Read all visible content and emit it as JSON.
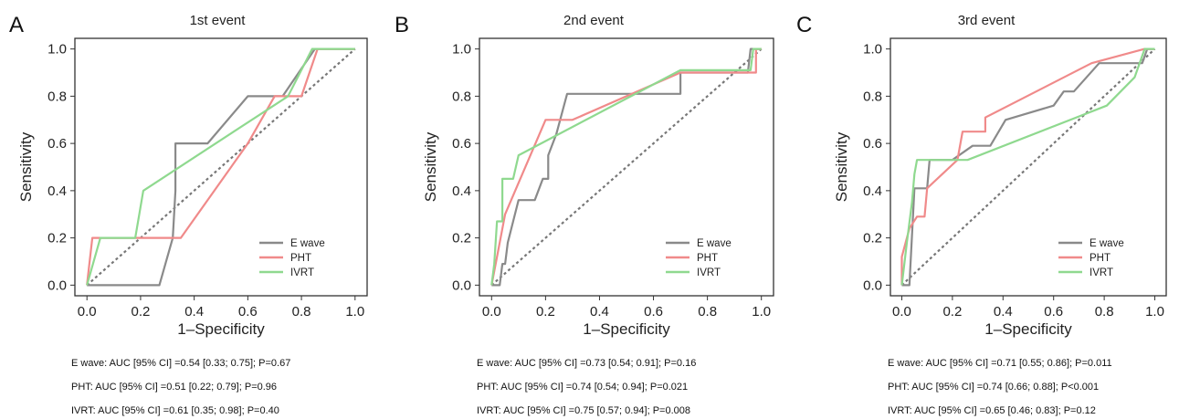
{
  "chart_data": [
    {
      "type": "line",
      "panel_label": "A",
      "title": "1st event",
      "xlabel": "1–Specificity",
      "ylabel": "Sensitivity",
      "xlim": [
        0,
        1
      ],
      "ylim": [
        0,
        1
      ],
      "ticks": [
        "0.0",
        "0.2",
        "0.4",
        "0.6",
        "0.8",
        "1.0"
      ],
      "legend_position": "bottom-right",
      "series": [
        {
          "name": "E wave",
          "color": "#8a8a8a",
          "points": [
            [
              0,
              0
            ],
            [
              0.27,
              0
            ],
            [
              0.32,
              0.2
            ],
            [
              0.33,
              0.4
            ],
            [
              0.33,
              0.6
            ],
            [
              0.45,
              0.6
            ],
            [
              0.6,
              0.8
            ],
            [
              0.73,
              0.8
            ],
            [
              0.85,
              1.0
            ],
            [
              1.0,
              1.0
            ]
          ]
        },
        {
          "name": "PHT",
          "color": "#f08a8a",
          "points": [
            [
              0,
              0
            ],
            [
              0.02,
              0.2
            ],
            [
              0.35,
              0.2
            ],
            [
              0.6,
              0.6
            ],
            [
              0.7,
              0.8
            ],
            [
              0.8,
              0.8
            ],
            [
              0.86,
              1.0
            ],
            [
              1.0,
              1.0
            ]
          ]
        },
        {
          "name": "IVRT",
          "color": "#8fd98f",
          "points": [
            [
              0,
              0
            ],
            [
              0.05,
              0.2
            ],
            [
              0.18,
              0.2
            ],
            [
              0.21,
              0.4
            ],
            [
              0.75,
              0.8
            ],
            [
              0.84,
              1.0
            ],
            [
              1.0,
              1.0
            ]
          ]
        }
      ],
      "reference_line": [
        [
          0,
          0
        ],
        [
          1,
          1
        ]
      ],
      "stats": [
        "E wave: AUC [95% CI] =0.54 [0.33; 0.75]; P=0.67",
        "PHT: AUC [95% CI] =0.51 [0.22; 0.79]; P=0.96",
        "IVRT: AUC [95% CI] =0.61 [0.35; 0.98]; P=0.40"
      ]
    },
    {
      "type": "line",
      "panel_label": "B",
      "title": "2nd event",
      "xlabel": "1–Specificity",
      "ylabel": "Sensitivity",
      "xlim": [
        0,
        1
      ],
      "ylim": [
        0,
        1
      ],
      "ticks": [
        "0.0",
        "0.2",
        "0.4",
        "0.6",
        "0.8",
        "1.0"
      ],
      "legend_position": "bottom-right",
      "series": [
        {
          "name": "E wave",
          "color": "#8a8a8a",
          "points": [
            [
              0,
              0
            ],
            [
              0.03,
              0
            ],
            [
              0.04,
              0.09
            ],
            [
              0.05,
              0.09
            ],
            [
              0.06,
              0.18
            ],
            [
              0.08,
              0.27
            ],
            [
              0.1,
              0.36
            ],
            [
              0.16,
              0.36
            ],
            [
              0.19,
              0.45
            ],
            [
              0.21,
              0.45
            ],
            [
              0.21,
              0.55
            ],
            [
              0.24,
              0.64
            ],
            [
              0.28,
              0.81
            ],
            [
              0.7,
              0.81
            ],
            [
              0.7,
              0.9
            ],
            [
              0.95,
              0.9
            ],
            [
              0.96,
              1.0
            ],
            [
              1.0,
              1.0
            ]
          ]
        },
        {
          "name": "PHT",
          "color": "#f08a8a",
          "points": [
            [
              0,
              0
            ],
            [
              0.05,
              0.3
            ],
            [
              0.2,
              0.7
            ],
            [
              0.3,
              0.7
            ],
            [
              0.7,
              0.9
            ],
            [
              0.97,
              0.9
            ],
            [
              0.98,
              0.9
            ],
            [
              0.98,
              1.0
            ],
            [
              1.0,
              1.0
            ]
          ]
        },
        {
          "name": "IVRT",
          "color": "#8fd98f",
          "points": [
            [
              0,
              0
            ],
            [
              0.01,
              0.09
            ],
            [
              0.02,
              0.27
            ],
            [
              0.04,
              0.27
            ],
            [
              0.04,
              0.45
            ],
            [
              0.08,
              0.45
            ],
            [
              0.1,
              0.55
            ],
            [
              0.7,
              0.91
            ],
            [
              0.96,
              0.91
            ],
            [
              0.97,
              1.0
            ],
            [
              1.0,
              1.0
            ]
          ]
        }
      ],
      "reference_line": [
        [
          0,
          0
        ],
        [
          1,
          1
        ]
      ],
      "stats": [
        "E wave: AUC [95% CI] =0.73 [0.54; 0.91]; P=0.16",
        "PHT: AUC [95% CI] =0.74 [0.54; 0.94]; P=0.021",
        "IVRT: AUC [95% CI] =0.75 [0.57; 0.94]; P=0.008"
      ]
    },
    {
      "type": "line",
      "panel_label": "C",
      "title": "3rd event",
      "xlabel": "1–Specificity",
      "ylabel": "Sensitivity",
      "xlim": [
        0,
        1
      ],
      "ylim": [
        0,
        1
      ],
      "ticks": [
        "0.0",
        "0.2",
        "0.4",
        "0.6",
        "0.8",
        "1.0"
      ],
      "legend_position": "bottom-right",
      "series": [
        {
          "name": "E wave",
          "color": "#8a8a8a",
          "points": [
            [
              0,
              0
            ],
            [
              0.03,
              0
            ],
            [
              0.05,
              0.41
            ],
            [
              0.1,
              0.41
            ],
            [
              0.11,
              0.53
            ],
            [
              0.2,
              0.53
            ],
            [
              0.28,
              0.59
            ],
            [
              0.35,
              0.59
            ],
            [
              0.41,
              0.7
            ],
            [
              0.6,
              0.76
            ],
            [
              0.64,
              0.82
            ],
            [
              0.68,
              0.82
            ],
            [
              0.78,
              0.94
            ],
            [
              0.95,
              0.94
            ],
            [
              0.97,
              1.0
            ],
            [
              1.0,
              1.0
            ]
          ]
        },
        {
          "name": "PHT",
          "color": "#f08a8a",
          "points": [
            [
              0,
              0
            ],
            [
              0.0,
              0.12
            ],
            [
              0.03,
              0.24
            ],
            [
              0.06,
              0.29
            ],
            [
              0.09,
              0.29
            ],
            [
              0.1,
              0.41
            ],
            [
              0.22,
              0.53
            ],
            [
              0.24,
              0.65
            ],
            [
              0.33,
              0.65
            ],
            [
              0.33,
              0.71
            ],
            [
              0.75,
              0.94
            ],
            [
              0.96,
              1.0
            ],
            [
              1.0,
              1.0
            ]
          ]
        },
        {
          "name": "IVRT",
          "color": "#8fd98f",
          "points": [
            [
              0,
              0
            ],
            [
              0.02,
              0.18
            ],
            [
              0.04,
              0.35
            ],
            [
              0.05,
              0.47
            ],
            [
              0.06,
              0.53
            ],
            [
              0.1,
              0.53
            ],
            [
              0.26,
              0.53
            ],
            [
              0.81,
              0.76
            ],
            [
              0.92,
              0.88
            ],
            [
              0.96,
              1.0
            ],
            [
              1.0,
              1.0
            ]
          ]
        }
      ],
      "reference_line": [
        [
          0,
          0
        ],
        [
          1,
          1
        ]
      ],
      "stats": [
        "E wave: AUC [95% CI] =0.71 [0.55; 0.86]; P=0.011",
        "PHT: AUC [95% CI] =0.74 [0.66; 0.88]; P<0.001",
        "IVRT: AUC [95% CI] =0.65 [0.46; 0.83]; P=0.12"
      ]
    }
  ]
}
